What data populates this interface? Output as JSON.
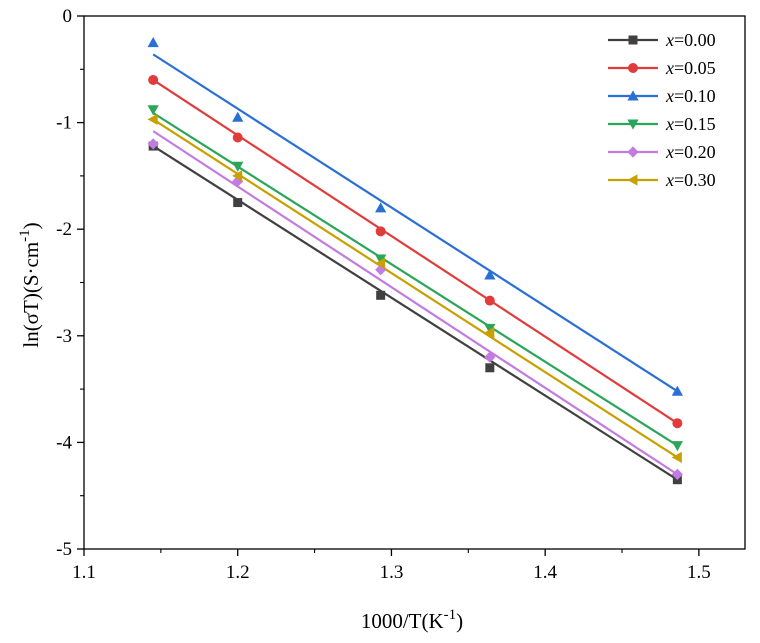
{
  "chart_data": {
    "type": "scatter",
    "title": "",
    "xlabel": "1000/T(K",
    "xlabel_sup": "-1",
    "xlabel_end": ")",
    "ylabel": "ln(σT)(S·cm",
    "ylabel_sup": "-1",
    "ylabel_end": ")",
    "xlim": [
      1.1,
      1.53
    ],
    "ylim": [
      -5,
      0
    ],
    "x_ticks": [
      1.1,
      1.2,
      1.3,
      1.4,
      1.5
    ],
    "x_tick_labels": [
      "1.1",
      "1.2",
      "1.3",
      "1.4",
      "1.5"
    ],
    "y_ticks": [
      0,
      -1,
      -2,
      -3,
      -4,
      -5
    ],
    "y_tick_labels": [
      "0",
      "-1",
      "-2",
      "-3",
      "-4",
      "-5"
    ],
    "grid": false,
    "legend_position": "top-right",
    "x": [
      1.145,
      1.2,
      1.293,
      1.364,
      1.486
    ],
    "series": [
      {
        "name_italic": "x",
        "name_rest": "=0.00",
        "color": "#404040",
        "marker": "square",
        "values": [
          -1.22,
          -1.75,
          -2.62,
          -3.3,
          -4.35
        ],
        "fit": [
          -1.22,
          -4.35
        ]
      },
      {
        "name_italic": "x",
        "name_rest": "=0.05",
        "color": "#e03c3c",
        "marker": "circle",
        "values": [
          -0.6,
          -1.14,
          -2.02,
          -2.67,
          -3.82
        ],
        "fit": [
          -0.6,
          -3.82
        ]
      },
      {
        "name_italic": "x",
        "name_rest": "=0.10",
        "color": "#2a6fd6",
        "marker": "triangle-up",
        "values": [
          -0.25,
          -0.95,
          -1.8,
          -2.43,
          -3.52
        ],
        "fit": [
          -0.36,
          -3.52
        ]
      },
      {
        "name_italic": "x",
        "name_rest": "=0.15",
        "color": "#2aa65a",
        "marker": "triangle-down",
        "values": [
          -0.88,
          -1.41,
          -2.28,
          -2.93,
          -4.03
        ],
        "fit": [
          -0.91,
          -4.03
        ]
      },
      {
        "name_italic": "x",
        "name_rest": "=0.20",
        "color": "#c27be0",
        "marker": "diamond",
        "values": [
          -1.2,
          -1.55,
          -2.38,
          -3.2,
          -4.3
        ],
        "fit": [
          -1.08,
          -4.3
        ]
      },
      {
        "name_italic": "x",
        "name_rest": "=0.30",
        "color": "#c8a000",
        "marker": "triangle-left",
        "values": [
          -0.97,
          -1.5,
          -2.32,
          -2.97,
          -4.14
        ],
        "fit": [
          -0.97,
          -4.14
        ]
      }
    ]
  }
}
